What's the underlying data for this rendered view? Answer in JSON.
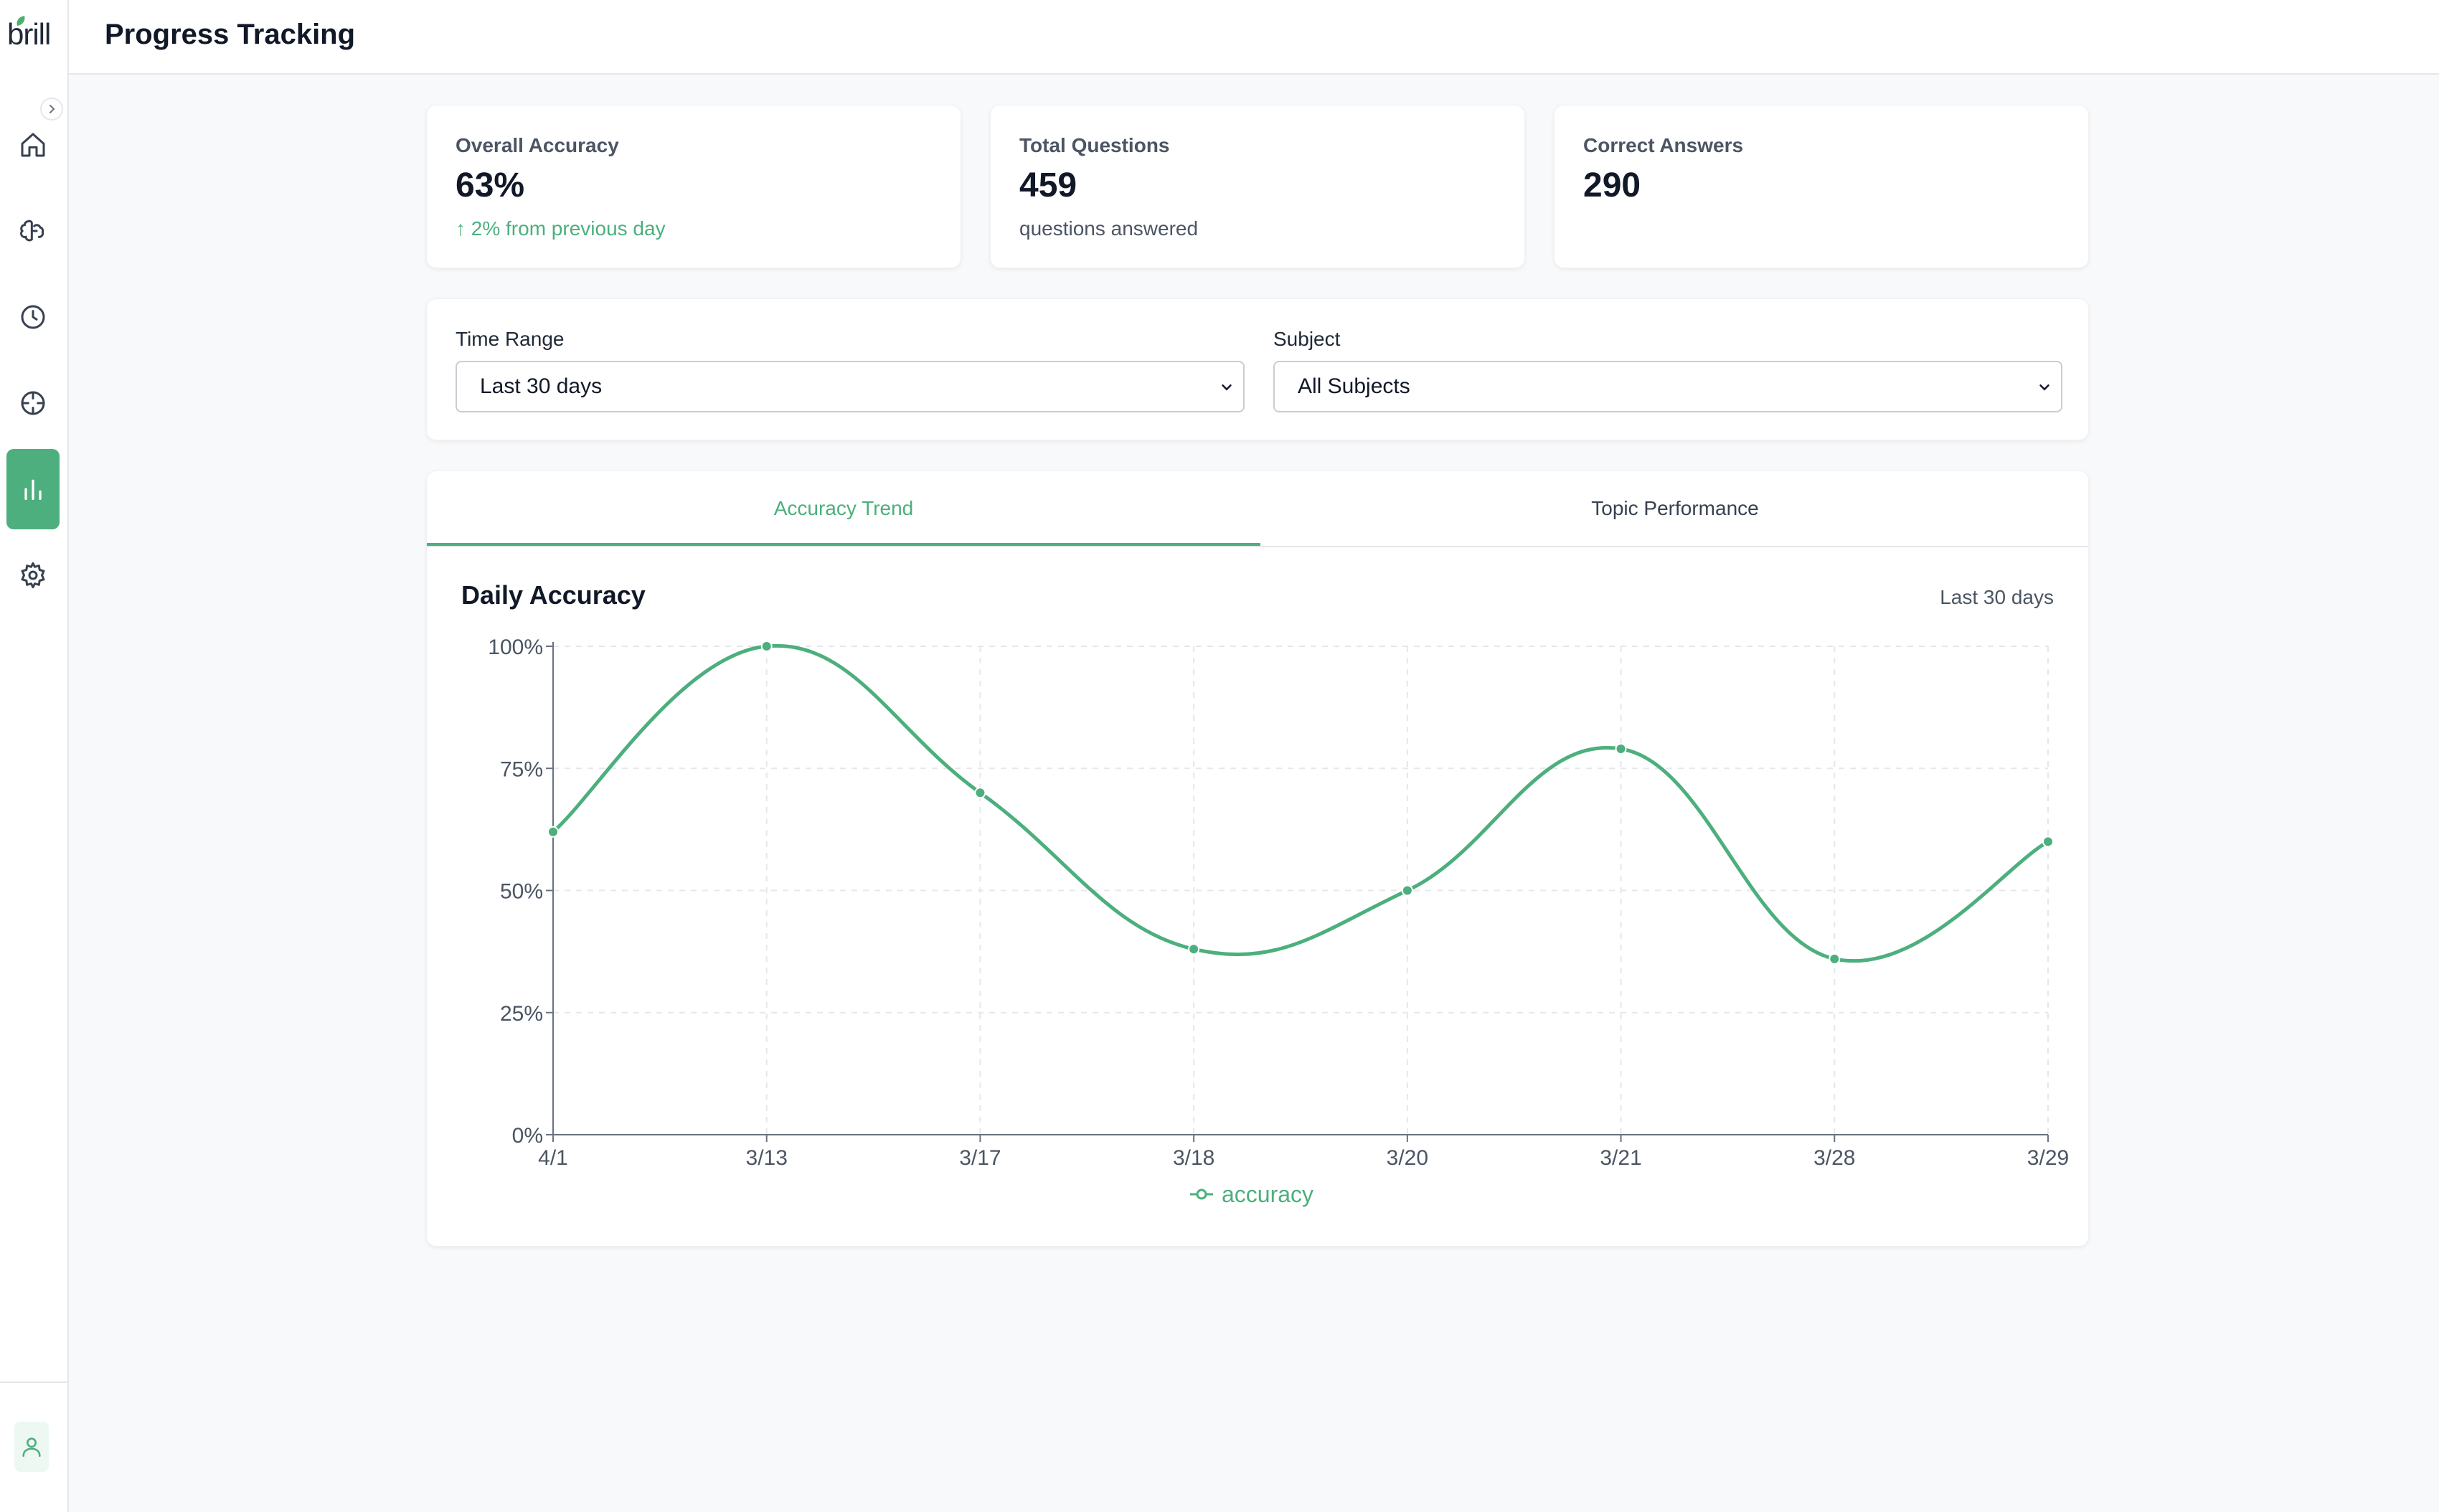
{
  "app": {
    "logo_text": "brill",
    "accent": "#4caf7d"
  },
  "header": {
    "title": "Progress Tracking"
  },
  "sidebar": {
    "items": [
      {
        "name": "home",
        "icon": "home-icon",
        "active": false
      },
      {
        "name": "practice",
        "icon": "brain-icon",
        "active": false
      },
      {
        "name": "history",
        "icon": "clock-icon",
        "active": false
      },
      {
        "name": "focus",
        "icon": "target-icon",
        "active": false
      },
      {
        "name": "progress",
        "icon": "bar-chart-icon",
        "active": true
      },
      {
        "name": "settings",
        "icon": "gear-icon",
        "active": false
      }
    ],
    "bottom": {
      "icon": "user-icon"
    }
  },
  "stats": {
    "accuracy": {
      "label": "Overall Accuracy",
      "value": "63%",
      "sub": "↑ 2% from previous day"
    },
    "total": {
      "label": "Total Questions",
      "value": "459",
      "sub": "questions answered"
    },
    "correct": {
      "label": "Correct Answers",
      "value": "290"
    }
  },
  "filters": {
    "time_range": {
      "label": "Time Range",
      "value": "Last 30 days"
    },
    "subject": {
      "label": "Subject",
      "value": "All Subjects"
    }
  },
  "tabs": [
    {
      "label": "Accuracy Trend",
      "active": true
    },
    {
      "label": "Topic Performance",
      "active": false
    }
  ],
  "chart_panel": {
    "title": "Daily Accuracy",
    "range_label": "Last 30 days"
  },
  "chart_data": {
    "type": "line",
    "categories": [
      "4/1",
      "3/13",
      "3/17",
      "3/18",
      "3/20",
      "3/21",
      "3/28",
      "3/29"
    ],
    "series": [
      {
        "name": "accuracy",
        "values": [
          62,
          100,
          70,
          38,
          50,
          79,
          36,
          60
        ],
        "color": "#4caf7d"
      }
    ],
    "ylim": [
      0,
      100
    ],
    "yticks": [
      "0%",
      "25%",
      "50%",
      "75%",
      "100%"
    ],
    "grid": true,
    "legend": "bottom-center"
  }
}
